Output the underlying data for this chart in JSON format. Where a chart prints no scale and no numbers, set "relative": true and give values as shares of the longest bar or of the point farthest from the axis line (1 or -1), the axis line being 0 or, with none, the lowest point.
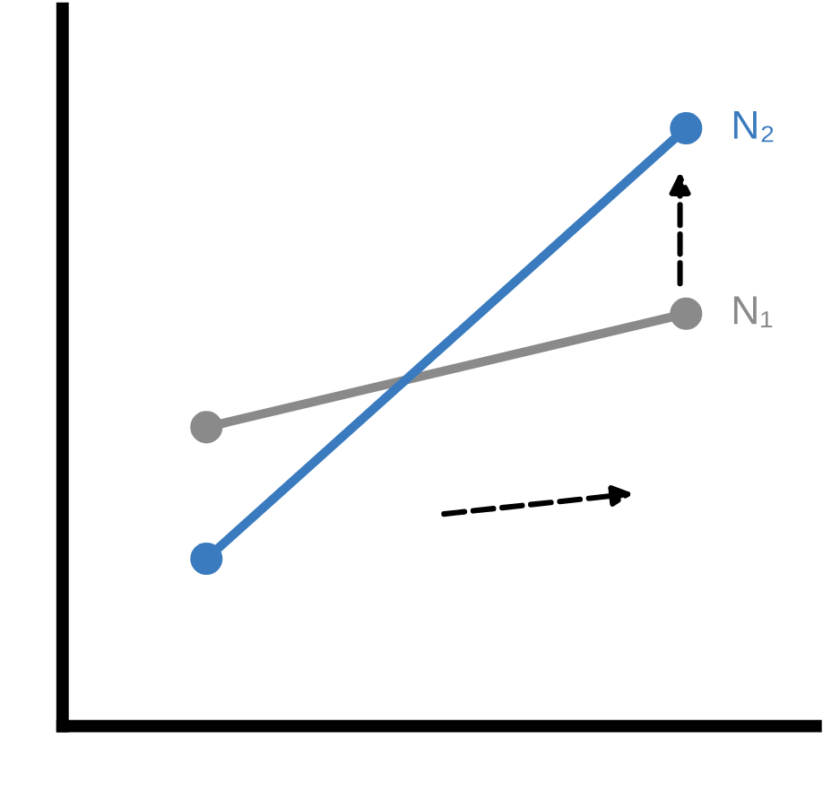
{
  "chart_data": {
    "type": "line",
    "relative": true,
    "categories": [
      null,
      null
    ],
    "marker": "circle",
    "line_style": "solid",
    "grid": false,
    "legend": false,
    "series": [
      {
        "name": "N₁",
        "color": "#8a8a8a",
        "values": [
          0.5,
          0.69
        ]
      },
      {
        "name": "N₂",
        "color": "#3a7bbf",
        "values": [
          0.28,
          1
        ]
      }
    ]
  }
}
